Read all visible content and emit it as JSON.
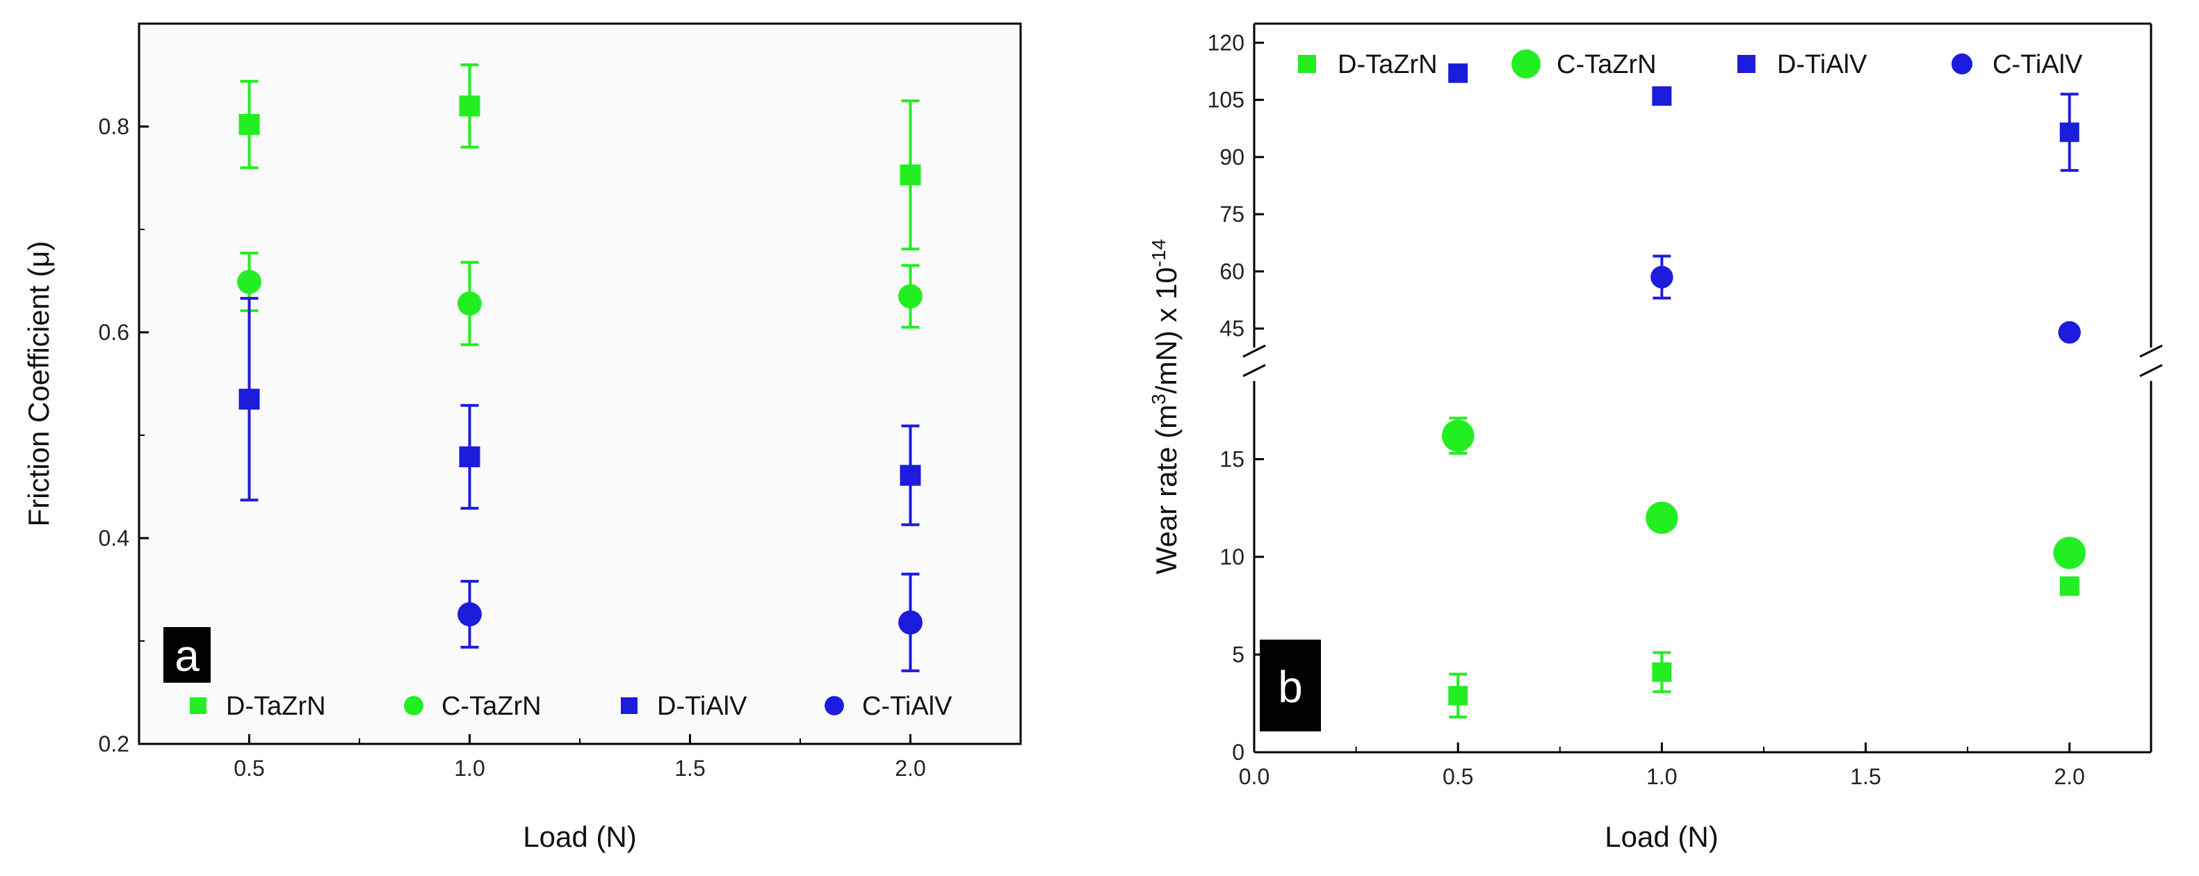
{
  "colors": {
    "green": "#22ee22",
    "blue": "#1c1cdc",
    "axis": "#000000",
    "plot_bg_a": "#fafafa"
  },
  "chart_data": [
    {
      "type": "scatter",
      "panel_label": "a",
      "xlabel": "Load (N)",
      "ylabel": "Friction Coefficient (μ)",
      "xlim": [
        0.25,
        2.25
      ],
      "ylim": [
        0.2,
        0.9
      ],
      "xticks": [
        0.5,
        1.0,
        1.5,
        2.0
      ],
      "xtick_labels": [
        "0.5",
        "1.0",
        "1.5",
        "2.0"
      ],
      "yticks": [
        0.2,
        0.4,
        0.6,
        0.8
      ],
      "ytick_labels": [
        "0.2",
        "0.4",
        "0.6",
        "0.8"
      ],
      "legend_position": "bottom",
      "series": [
        {
          "name": "D-TaZrN",
          "marker": "square",
          "color": "#22ee22",
          "x": [
            0.5,
            1.0,
            2.0
          ],
          "y": [
            0.802,
            0.82,
            0.753
          ],
          "err": [
            0.042,
            0.04,
            0.072
          ]
        },
        {
          "name": "C-TaZrN",
          "marker": "circle",
          "color": "#22ee22",
          "x": [
            0.5,
            1.0,
            2.0
          ],
          "y": [
            0.649,
            0.628,
            0.635
          ],
          "err": [
            0.028,
            0.04,
            0.03
          ]
        },
        {
          "name": "D-TiAlV",
          "marker": "square",
          "color": "#1c1cdc",
          "x": [
            0.5,
            1.0,
            2.0
          ],
          "y": [
            0.535,
            0.479,
            0.461
          ],
          "err": [
            0.098,
            0.05,
            0.048
          ]
        },
        {
          "name": "C-TiAlV",
          "marker": "circle",
          "color": "#1c1cdc",
          "x": [
            1.0,
            2.0
          ],
          "y": [
            0.326,
            0.318
          ],
          "err": [
            0.032,
            0.047
          ]
        }
      ]
    },
    {
      "type": "scatter",
      "panel_label": "b",
      "xlabel": "Load (N)",
      "ylabel_main": "Wear rate (m",
      "ylabel_sup1": "3",
      "ylabel_mid": "/mN) x 10",
      "ylabel_sup2": "-14",
      "xlim": [
        0.0,
        2.2
      ],
      "xticks": [
        0.0,
        0.5,
        1.0,
        1.5,
        2.0
      ],
      "xtick_labels": [
        "0.0",
        "0.5",
        "1.0",
        "1.5",
        "2.0"
      ],
      "axis_break": true,
      "lower_ylim": [
        0,
        19
      ],
      "upper_ylim": [
        40,
        125
      ],
      "lower_yticks": [
        0,
        5,
        10,
        15
      ],
      "lower_ytick_labels": [
        "0",
        "5",
        "10",
        "15"
      ],
      "upper_yticks": [
        45,
        60,
        75,
        90,
        105,
        120
      ],
      "upper_ytick_labels": [
        "45",
        "60",
        "75",
        "90",
        "105",
        "120"
      ],
      "legend_position": "top",
      "series": [
        {
          "name": "D-TaZrN",
          "marker": "square",
          "color": "#22ee22",
          "x": [
            0.5,
            1.0,
            2.0
          ],
          "y": [
            2.9,
            4.1,
            8.5
          ],
          "err": [
            1.1,
            1.0,
            0.3
          ]
        },
        {
          "name": "C-TaZrN",
          "marker": "circle",
          "color": "#22ee22",
          "x": [
            0.5,
            1.0,
            2.0
          ],
          "y": [
            16.2,
            12.0,
            10.2
          ],
          "err": [
            0.9,
            0.4,
            0.3
          ]
        },
        {
          "name": "D-TiAlV",
          "marker": "square",
          "color": "#1c1cdc",
          "x": [
            0.5,
            1.0,
            2.0
          ],
          "y": [
            112,
            106,
            96.5
          ],
          "err": [
            1.5,
            1.0,
            10
          ]
        },
        {
          "name": "C-TiAlV",
          "marker": "circle",
          "color": "#1c1cdc",
          "x": [
            1.0,
            2.0
          ],
          "y": [
            58.5,
            44
          ],
          "err": [
            5.5,
            1.0
          ]
        }
      ]
    }
  ]
}
